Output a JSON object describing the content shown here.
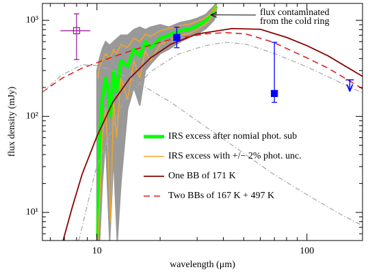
{
  "chart_data": {
    "type": "line",
    "xlabel": "wavelength (μm)",
    "ylabel": "flux density (mJy)",
    "xscale": "log",
    "yscale": "log",
    "xlim": [
      5.5,
      184
    ],
    "ylim": [
      5.1,
      1500
    ],
    "xticks": [
      10,
      100
    ],
    "yticks": [
      {
        "value": 10,
        "label": "10¹"
      },
      {
        "value": 100,
        "label": "10²"
      },
      {
        "value": 1000,
        "label": "10³"
      }
    ],
    "xminorticks": [
      6,
      7,
      8,
      9,
      20,
      30,
      40,
      50,
      60,
      70,
      80,
      90
    ],
    "yminorticks": [
      6,
      7,
      8,
      9,
      20,
      30,
      40,
      50,
      60,
      70,
      80,
      90,
      200,
      300,
      400,
      500,
      600,
      700,
      800,
      900
    ],
    "series": [
      {
        "color": "#999999",
        "style": "band",
        "x": [
          10,
          10.3,
          10.6,
          11,
          11.5,
          12,
          12.5,
          13,
          14,
          15,
          16,
          17,
          18,
          20,
          22,
          25,
          28,
          30,
          33,
          36,
          37
        ],
        "lower": [
          5.1,
          5.1,
          20,
          60,
          5.1,
          40,
          5.1,
          20,
          120,
          200,
          130,
          300,
          350,
          450,
          500,
          600,
          680,
          720,
          820,
          1000,
          1150
        ],
        "upper": [
          300,
          400,
          500,
          600,
          550,
          600,
          650,
          700,
          700,
          800,
          850,
          800,
          850,
          900,
          850,
          950,
          1000,
          1050,
          1150,
          1400,
          1500
        ]
      },
      {
        "name": "IRS excess after nomial phot. sub",
        "color": "#00ff00",
        "width": 5,
        "x": [
          10.1,
          10.3,
          10.6,
          11,
          11.3,
          11.6,
          12,
          12.4,
          13,
          14,
          15,
          16,
          17,
          18,
          20,
          22,
          25,
          28,
          30,
          32,
          34,
          36,
          37
        ],
        "values": [
          5.5,
          60,
          150,
          250,
          200,
          100,
          300,
          180,
          380,
          330,
          500,
          420,
          600,
          520,
          650,
          700,
          780,
          820,
          880,
          950,
          1050,
          1250,
          1400
        ]
      },
      {
        "name": "IRS excess with +/− 2% phot. unc.",
        "color": "#f5a623",
        "width": 1.5,
        "x": [
          10.1,
          10.3,
          10.6,
          11,
          11.3,
          11.6,
          12,
          12.4,
          13,
          14,
          15,
          16,
          17,
          18,
          20,
          22,
          25,
          28,
          30,
          32,
          34,
          36,
          37
        ],
        "values": [
          250,
          330,
          380,
          450,
          420,
          400,
          500,
          450,
          560,
          520,
          650,
          600,
          720,
          680,
          780,
          820,
          880,
          920,
          970,
          1030,
          1120,
          1300,
          1450
        ]
      },
      {
        "color": "#f5a623",
        "width": 1.5,
        "x": [
          10.1,
          10.3,
          10.6,
          11,
          11.3,
          11.6,
          12,
          12.4,
          13,
          14,
          15,
          16,
          17,
          18,
          20,
          22,
          25,
          28,
          30,
          32,
          34,
          36,
          37
        ],
        "values": [
          5.1,
          12,
          60,
          120,
          40,
          8,
          150,
          60,
          250,
          150,
          380,
          250,
          480,
          380,
          560,
          620,
          700,
          740,
          800,
          880,
          980,
          1200,
          1350
        ]
      },
      {
        "name": "One BB of 171 K",
        "color": "#8b0000",
        "width": 1.8,
        "x": [
          6.9,
          7.6,
          8.5,
          10,
          11.9,
          14.3,
          18,
          22.5,
          30,
          44,
          60,
          80,
          100,
          126,
          158,
          184
        ],
        "values": [
          5.1,
          11,
          25,
          62,
          140,
          248,
          406,
          564,
          721,
          822,
          807,
          664,
          545,
          427,
          318,
          261
        ]
      },
      {
        "name": "Two BBs of 167 K + 497 K",
        "color": "#e41a1c",
        "width": 1.6,
        "dash": "9,6",
        "x": [
          5.5,
          6.8,
          8.5,
          10,
          12.3,
          15.4,
          22.5,
          32.7,
          40.9,
          51.3,
          69.2,
          100,
          126,
          158,
          184
        ],
        "values": [
          179,
          248,
          318,
          362,
          427,
          502,
          632,
          721,
          745,
          721,
          591,
          406,
          318,
          237,
          194
        ]
      },
      {
        "color": "#aaaaaa",
        "width": 1.3,
        "dash": "7,3,1.5,3",
        "x": [
          5.5,
          6.8,
          8.5,
          10,
          12.3,
          15.4,
          22.5,
          32.7,
          47.6,
          69.2,
          100,
          146.6,
          184
        ],
        "values": [
          179,
          270,
          344,
          339,
          292,
          229,
          140,
          78.9,
          44.5,
          25.1,
          15.3,
          9.4,
          7.3
        ]
      },
      {
        "color": "#aaaaaa",
        "width": 1.3,
        "dash": "7,3,1.5,3",
        "x": [
          8.2,
          9.85,
          13.3,
          18,
          24.2,
          32.7,
          40.9,
          51.3,
          69.2,
          100,
          146.6,
          184
        ],
        "values": [
          5.1,
          27.2,
          140,
          292,
          441,
          545,
          591,
          564,
          455,
          328,
          221,
          176
        ]
      }
    ],
    "points": [
      {
        "x": 8,
        "y": 780,
        "xerr": [
          6.7,
          9.3
        ],
        "yerr": [
          390,
          1170
        ],
        "color": "#a020a0",
        "marker": "open-square"
      },
      {
        "x": 24,
        "y": 664,
        "yerr": [
          519,
          849
        ],
        "color": "#0000ff",
        "marker": "square"
      },
      {
        "x": 70,
        "y": 173,
        "yerr": [
          140,
          591
        ],
        "color": "#0000ff",
        "marker": "square"
      },
      {
        "x": 160,
        "y": 240,
        "upper_limit": true,
        "limit_to": 185,
        "color": "#0000ff"
      }
    ],
    "annotation": {
      "text": [
        "flux contaminated",
        "from the cold ring"
      ],
      "x": 35,
      "y": 1140
    },
    "legend": "lower-center"
  }
}
